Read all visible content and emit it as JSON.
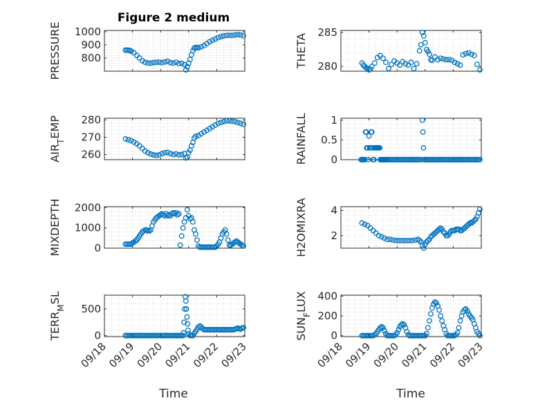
{
  "figure": {
    "title": "Figure 2 medium",
    "xlabel": "Time"
  },
  "chart_data": [
    {
      "type": "scatter",
      "ylabel": "PRESSURE",
      "xlim": [
        0,
        5
      ],
      "ylim": [
        700,
        1010
      ],
      "yticks": [
        800,
        900,
        1000
      ],
      "color": "#0072BD",
      "x": [
        0.75,
        0.8,
        0.85,
        0.9,
        0.95,
        1.05,
        1.15,
        1.25,
        1.35,
        1.45,
        1.55,
        1.65,
        1.75,
        1.85,
        1.95,
        2.05,
        2.15,
        2.25,
        2.35,
        2.45,
        2.55,
        2.65,
        2.75,
        2.85,
        2.9,
        2.95,
        3.0,
        3.05,
        3.1,
        3.15,
        3.2,
        3.25,
        3.3,
        3.35,
        3.45,
        3.55,
        3.65,
        3.75,
        3.85,
        3.95,
        4.05,
        4.15,
        4.25,
        4.35,
        4.45,
        4.55,
        4.65,
        4.75,
        4.85,
        4.95
      ],
      "y": [
        860,
        860,
        860,
        858,
        852,
        840,
        820,
        800,
        780,
        768,
        762,
        762,
        765,
        768,
        768,
        765,
        770,
        775,
        765,
        762,
        768,
        758,
        760,
        750,
        710,
        735,
        760,
        790,
        825,
        855,
        875,
        880,
        880,
        878,
        885,
        895,
        910,
        925,
        935,
        945,
        955,
        962,
        968,
        972,
        972,
        972,
        975,
        978,
        975,
        970
      ]
    },
    {
      "type": "scatter",
      "ylabel": "THETA",
      "xlim": [
        0,
        5
      ],
      "ylim": [
        279.3,
        285.3
      ],
      "yticks": [
        280,
        285
      ],
      "color": "#0072BD",
      "x": [
        0.75,
        0.8,
        0.85,
        0.9,
        0.95,
        1.0,
        1.05,
        1.1,
        1.2,
        1.3,
        1.4,
        1.5,
        1.6,
        1.7,
        1.8,
        1.9,
        2.0,
        2.1,
        2.2,
        2.3,
        2.4,
        2.5,
        2.6,
        2.7,
        2.8,
        2.85,
        2.9,
        2.95,
        3.0,
        3.05,
        3.1,
        3.15,
        3.2,
        3.25,
        3.35,
        3.45,
        3.55,
        3.65,
        3.75,
        3.85,
        3.95,
        4.05,
        4.15,
        4.25,
        4.35,
        4.45,
        4.55,
        4.65,
        4.75,
        4.85,
        4.95
      ],
      "y": [
        280.5,
        280.2,
        280.0,
        279.8,
        279.7,
        279.5,
        279.6,
        280.0,
        280.5,
        281.3,
        281.6,
        281.2,
        280.6,
        279.7,
        280.3,
        280.8,
        280.5,
        280.2,
        280.7,
        280.4,
        280.2,
        280.6,
        279.7,
        280.4,
        282.3,
        283.2,
        285.0,
        284.5,
        283.5,
        282.5,
        282.2,
        281.8,
        281.0,
        280.9,
        281.4,
        281.0,
        281.2,
        281.1,
        281.0,
        281.0,
        280.9,
        280.6,
        280.4,
        280.2,
        281.7,
        281.9,
        282.0,
        281.8,
        281.6,
        280.3,
        279.5
      ]
    },
    {
      "type": "scatter",
      "ylabel": "AIR_TEMP",
      "ylabel_main": "AIR",
      "ylabel_sub": "T",
      "ylabel_rest": "EMP",
      "xlim": [
        0,
        5
      ],
      "ylim": [
        257,
        281
      ],
      "yticks": [
        260,
        270,
        280
      ],
      "color": "#0072BD",
      "x": [
        0.75,
        0.85,
        0.95,
        1.05,
        1.15,
        1.25,
        1.35,
        1.45,
        1.55,
        1.65,
        1.75,
        1.85,
        1.95,
        2.05,
        2.15,
        2.25,
        2.35,
        2.45,
        2.55,
        2.65,
        2.75,
        2.85,
        2.9,
        2.95,
        3.0,
        3.05,
        3.1,
        3.15,
        3.2,
        3.25,
        3.35,
        3.45,
        3.55,
        3.65,
        3.75,
        3.85,
        3.95,
        4.05,
        4.15,
        4.25,
        4.35,
        4.45,
        4.55,
        4.65,
        4.75,
        4.85,
        4.95
      ],
      "y": [
        269,
        268.5,
        268,
        267.2,
        266.2,
        265,
        263.5,
        262,
        261,
        260.2,
        259.8,
        259.5,
        259.8,
        260.5,
        261,
        261.2,
        260.5,
        260,
        260.3,
        259.8,
        260,
        260.5,
        258,
        258.5,
        261,
        262.5,
        265,
        267,
        269.5,
        270.5,
        271,
        272,
        273,
        274,
        275,
        276,
        277,
        278,
        278.5,
        279,
        279.5,
        279.5,
        279.2,
        279,
        278.5,
        278,
        277.5
      ]
    },
    {
      "type": "scatter",
      "ylabel": "RAINFALL",
      "xlim": [
        0,
        5
      ],
      "ylim": [
        0,
        1.05
      ],
      "yticks": [
        0,
        0.5,
        1
      ],
      "yticklabels": [
        "0",
        "0.5",
        "1"
      ],
      "color": "#0072BD",
      "x": [
        0.72,
        0.75,
        0.78,
        0.82,
        0.85,
        0.88,
        0.9,
        0.92,
        0.95,
        0.97,
        1.0,
        1.02,
        1.05,
        1.08,
        1.1,
        1.12,
        1.15,
        1.18,
        1.2,
        1.22,
        1.25,
        1.28,
        1.3,
        1.32,
        1.35,
        1.38,
        1.4,
        1.42,
        1.45,
        1.48,
        1.5,
        1.52,
        1.55,
        1.58,
        1.6,
        1.62,
        1.65,
        1.7,
        1.75,
        1.8,
        1.85,
        1.9,
        1.95,
        2.0,
        2.05,
        2.1,
        2.15,
        2.2,
        2.25,
        2.3,
        2.35,
        2.4,
        2.45,
        2.5,
        2.55,
        2.6,
        2.65,
        2.7,
        2.75,
        2.8,
        2.85,
        2.9,
        2.92,
        2.94,
        2.96,
        2.98,
        3.0,
        3.05,
        3.1,
        3.15,
        3.2,
        3.25,
        3.3,
        3.35,
        3.4,
        3.45,
        3.5,
        3.55,
        3.6,
        3.65,
        3.7,
        3.75,
        3.8,
        3.85,
        3.9,
        3.95,
        4.0,
        4.05,
        4.1,
        4.15,
        4.2,
        4.25,
        4.3,
        4.35,
        4.4,
        4.45,
        4.5,
        4.55,
        4.6,
        4.65,
        4.7,
        4.75,
        4.8,
        4.85,
        4.9,
        4.95
      ],
      "y": [
        0,
        0,
        0,
        0,
        0,
        0.7,
        0.7,
        0.3,
        0.3,
        0,
        0.6,
        0.3,
        0.3,
        0.7,
        0.7,
        0.3,
        0,
        0,
        0.3,
        0.3,
        0.3,
        0.3,
        0.3,
        0.3,
        0.3,
        0.3,
        0,
        0,
        0,
        0,
        0,
        0,
        0,
        0,
        0,
        0,
        0,
        0,
        0,
        0,
        0,
        0,
        0,
        0,
        0,
        0,
        0,
        0,
        0,
        0,
        0,
        0,
        0,
        0,
        0,
        0,
        0,
        0,
        0,
        0,
        0,
        1.0,
        0.7,
        0.3,
        0,
        0,
        0,
        0,
        0,
        0,
        0,
        0,
        0,
        0,
        0,
        0,
        0,
        0,
        0,
        0,
        0,
        0,
        0,
        0,
        0,
        0,
        0,
        0,
        0,
        0,
        0,
        0,
        0,
        0,
        0,
        0,
        0,
        0,
        0,
        0,
        0,
        0,
        0,
        0,
        0,
        0
      ]
    },
    {
      "type": "scatter",
      "ylabel": "MIXDEPTH",
      "xlim": [
        0,
        5
      ],
      "ylim": [
        0,
        2050
      ],
      "yticks": [
        0,
        1000,
        2000
      ],
      "color": "#0072BD",
      "x": [
        0.75,
        0.8,
        0.85,
        0.9,
        0.95,
        1.0,
        1.05,
        1.1,
        1.15,
        1.2,
        1.25,
        1.3,
        1.35,
        1.4,
        1.45,
        1.5,
        1.55,
        1.6,
        1.65,
        1.7,
        1.75,
        1.8,
        1.85,
        1.9,
        1.95,
        2.0,
        2.05,
        2.1,
        2.15,
        2.2,
        2.25,
        2.3,
        2.35,
        2.4,
        2.45,
        2.5,
        2.55,
        2.6,
        2.65,
        2.7,
        2.75,
        2.8,
        2.85,
        2.9,
        2.95,
        3.0,
        3.05,
        3.1,
        3.15,
        3.2,
        3.25,
        3.3,
        3.35,
        3.4,
        3.45,
        3.5,
        3.55,
        3.6,
        3.65,
        3.7,
        3.75,
        3.8,
        3.85,
        3.9,
        3.95,
        4.0,
        4.05,
        4.1,
        4.15,
        4.2,
        4.25,
        4.3,
        4.35,
        4.4,
        4.45,
        4.5,
        4.55,
        4.6,
        4.65,
        4.7,
        4.75,
        4.8,
        4.85,
        4.9,
        4.95
      ],
      "y": [
        200,
        200,
        200,
        200,
        200,
        250,
        300,
        350,
        400,
        500,
        600,
        700,
        800,
        850,
        900,
        900,
        850,
        850,
        900,
        1100,
        1300,
        1400,
        1500,
        1550,
        1600,
        1650,
        1700,
        1650,
        1600,
        1700,
        1600,
        1650,
        1600,
        1700,
        1750,
        1700,
        1750,
        1650,
        1700,
        150,
        600,
        1000,
        1300,
        1500,
        1900,
        1600,
        1450,
        1500,
        1300,
        900,
        700,
        400,
        100,
        50,
        50,
        50,
        50,
        50,
        50,
        50,
        50,
        50,
        50,
        50,
        50,
        100,
        200,
        300,
        500,
        700,
        800,
        900,
        700,
        400,
        150,
        150,
        200,
        250,
        300,
        350,
        300,
        250,
        200,
        150,
        100
      ]
    },
    {
      "type": "scatter",
      "ylabel": "H2OMIXRA",
      "xlim": [
        0,
        5
      ],
      "ylim": [
        1,
        4.3
      ],
      "yticks": [
        2,
        4
      ],
      "color": "#0072BD",
      "x": [
        0.75,
        0.85,
        0.95,
        1.05,
        1.15,
        1.25,
        1.35,
        1.45,
        1.55,
        1.65,
        1.75,
        1.85,
        1.95,
        2.05,
        2.15,
        2.25,
        2.35,
        2.45,
        2.55,
        2.65,
        2.75,
        2.8,
        2.85,
        2.9,
        2.95,
        3.0,
        3.05,
        3.1,
        3.15,
        3.2,
        3.25,
        3.3,
        3.35,
        3.4,
        3.45,
        3.5,
        3.55,
        3.6,
        3.65,
        3.7,
        3.75,
        3.8,
        3.85,
        3.9,
        3.95,
        4.0,
        4.05,
        4.1,
        4.15,
        4.2,
        4.25,
        4.3,
        4.35,
        4.4,
        4.45,
        4.5,
        4.55,
        4.6,
        4.65,
        4.7,
        4.75,
        4.8,
        4.85,
        4.9,
        4.95
      ],
      "y": [
        3.0,
        2.9,
        2.8,
        2.6,
        2.4,
        2.2,
        2.0,
        1.9,
        1.8,
        1.7,
        1.7,
        1.65,
        1.6,
        1.6,
        1.6,
        1.6,
        1.6,
        1.6,
        1.6,
        1.65,
        1.7,
        1.6,
        1.5,
        1.2,
        1.0,
        1.3,
        1.5,
        1.6,
        1.7,
        1.9,
        2.0,
        2.1,
        2.2,
        2.3,
        2.4,
        2.5,
        2.6,
        2.5,
        2.3,
        2.2,
        2.0,
        2.0,
        2.1,
        2.3,
        2.4,
        2.4,
        2.4,
        2.5,
        2.5,
        2.5,
        2.4,
        2.4,
        2.5,
        2.6,
        2.7,
        2.8,
        2.9,
        3.0,
        3.0,
        3.1,
        3.2,
        3.3,
        3.5,
        3.8,
        4.1
      ]
    },
    {
      "type": "scatter",
      "ylabel": "TERR_MSL",
      "ylabel_main": "TERR",
      "ylabel_sub": "M",
      "ylabel_rest": "SL",
      "xlim": [
        0,
        5
      ],
      "ylim": [
        -20,
        760
      ],
      "yticks": [
        0,
        500
      ],
      "color": "#0072BD",
      "x": [
        0.75,
        0.8,
        0.85,
        0.9,
        0.95,
        1.0,
        1.05,
        1.1,
        1.15,
        1.2,
        1.25,
        1.3,
        1.35,
        1.4,
        1.45,
        1.5,
        1.55,
        1.6,
        1.65,
        1.7,
        1.75,
        1.8,
        1.85,
        1.9,
        1.95,
        2.0,
        2.05,
        2.1,
        2.15,
        2.2,
        2.25,
        2.3,
        2.35,
        2.4,
        2.45,
        2.5,
        2.55,
        2.6,
        2.65,
        2.7,
        2.75,
        2.8,
        2.82,
        2.84,
        2.86,
        2.88,
        2.9,
        2.92,
        2.94,
        2.96,
        2.98,
        3.0,
        3.05,
        3.1,
        3.15,
        3.2,
        3.25,
        3.3,
        3.35,
        3.4,
        3.45,
        3.5,
        3.55,
        3.6,
        3.65,
        3.7,
        3.75,
        3.8,
        3.85,
        3.9,
        3.95,
        4.0,
        4.05,
        4.1,
        4.15,
        4.2,
        4.25,
        4.3,
        4.35,
        4.4,
        4.45,
        4.5,
        4.55,
        4.6,
        4.65,
        4.7,
        4.75,
        4.8,
        4.85,
        4.9,
        4.95
      ],
      "y": [
        0,
        0,
        0,
        0,
        0,
        0,
        0,
        0,
        0,
        0,
        0,
        0,
        0,
        0,
        0,
        0,
        0,
        0,
        0,
        0,
        0,
        0,
        0,
        0,
        0,
        0,
        0,
        0,
        0,
        0,
        0,
        0,
        0,
        0,
        0,
        0,
        0,
        0,
        0,
        0,
        0,
        0,
        50,
        250,
        500,
        730,
        650,
        500,
        350,
        220,
        100,
        30,
        0,
        0,
        0,
        40,
        80,
        120,
        160,
        180,
        160,
        130,
        110,
        110,
        110,
        110,
        110,
        110,
        110,
        110,
        110,
        110,
        110,
        110,
        110,
        110,
        110,
        110,
        110,
        110,
        110,
        110,
        110,
        110,
        120,
        130,
        140,
        130,
        120,
        140,
        150
      ]
    },
    {
      "type": "scatter",
      "ylabel": "SUN_FLUX",
      "ylabel_main": "SUN",
      "ylabel_sub": "F",
      "ylabel_rest": "LUX",
      "xlim": [
        0,
        5
      ],
      "ylim": [
        -10,
        410
      ],
      "yticks": [
        0,
        200,
        400
      ],
      "color": "#0072BD",
      "x": [
        0.75,
        0.8,
        0.85,
        0.9,
        0.95,
        1.0,
        1.05,
        1.1,
        1.15,
        1.2,
        1.25,
        1.3,
        1.35,
        1.4,
        1.45,
        1.5,
        1.55,
        1.6,
        1.65,
        1.7,
        1.75,
        1.8,
        1.85,
        1.9,
        1.95,
        2.0,
        2.05,
        2.1,
        2.15,
        2.2,
        2.25,
        2.3,
        2.35,
        2.4,
        2.45,
        2.5,
        2.55,
        2.6,
        2.65,
        2.7,
        2.75,
        2.8,
        2.85,
        2.9,
        2.95,
        3.0,
        3.05,
        3.1,
        3.15,
        3.2,
        3.25,
        3.3,
        3.35,
        3.4,
        3.45,
        3.5,
        3.55,
        3.6,
        3.65,
        3.7,
        3.75,
        3.8,
        3.85,
        3.9,
        3.95,
        4.0,
        4.05,
        4.1,
        4.15,
        4.2,
        4.25,
        4.3,
        4.35,
        4.4,
        4.45,
        4.5,
        4.55,
        4.6,
        4.65,
        4.7,
        4.75,
        4.8,
        4.85,
        4.9,
        4.95
      ],
      "y": [
        0,
        0,
        0,
        0,
        0,
        0,
        0,
        0,
        0,
        10,
        20,
        40,
        60,
        80,
        90,
        80,
        50,
        20,
        0,
        0,
        0,
        0,
        0,
        0,
        10,
        30,
        60,
        90,
        110,
        120,
        110,
        80,
        40,
        10,
        0,
        0,
        0,
        0,
        0,
        0,
        0,
        0,
        0,
        0,
        0,
        0,
        20,
        80,
        150,
        220,
        280,
        320,
        340,
        330,
        300,
        260,
        200,
        150,
        100,
        60,
        20,
        0,
        0,
        0,
        0,
        0,
        0,
        10,
        30,
        80,
        150,
        200,
        240,
        260,
        270,
        250,
        220,
        200,
        180,
        160,
        120,
        80,
        40,
        20,
        0
      ]
    }
  ],
  "xaxis": {
    "ticks": [
      0,
      1,
      2,
      3,
      4,
      5
    ],
    "ticklabels": [
      "09/18",
      "09/19",
      "09/20",
      "09/21",
      "09/22",
      "09/23"
    ]
  }
}
